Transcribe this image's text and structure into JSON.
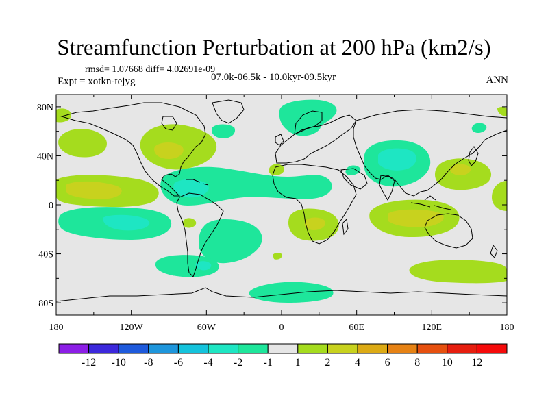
{
  "title": "Streamfunction Perturbation at 200 hPa (km2/s)",
  "stats": "rmsd= 1.07668 diff= 4.02691e-09",
  "experiment": "Expt = xotkn-tejyg",
  "period": "07.0k-06.5k - 10.0kyr-09.5kyr",
  "season": "ANN",
  "lat_ticks": [
    "80N",
    "40N",
    "0",
    "40S",
    "80S"
  ],
  "lat_values": [
    80,
    40,
    0,
    -40,
    -80
  ],
  "lon_ticks": [
    "180",
    "120W",
    "60W",
    "0",
    "60E",
    "120E",
    "180"
  ],
  "lon_values": [
    -180,
    -120,
    -60,
    0,
    60,
    120,
    180
  ],
  "colorbar": {
    "labels": [
      "-12",
      "-10",
      "-8",
      "-6",
      "-4",
      "-2",
      "-1",
      "1",
      "2",
      "4",
      "6",
      "8",
      "10",
      "12"
    ],
    "colors": [
      "#8c1ee6",
      "#3c28dc",
      "#1e5adc",
      "#1e96dc",
      "#14c3dc",
      "#1ee6c3",
      "#1ee69b",
      "#e6e6e6",
      "#a5dc1e",
      "#c8d21e",
      "#dcaa14",
      "#e68214",
      "#e6500f",
      "#e61e0f",
      "#f50a0a"
    ]
  },
  "colors": {
    "ocean_background": "#e6e6e6",
    "coastline": "#000000"
  }
}
